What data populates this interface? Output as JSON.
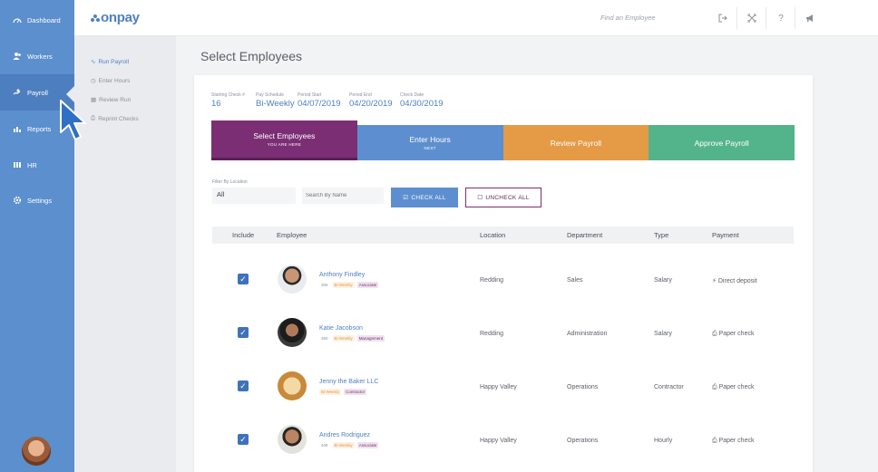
{
  "nav": {
    "items": [
      {
        "label": "Dashboard",
        "icon": "dashboard-icon"
      },
      {
        "label": "Workers",
        "icon": "workers-icon"
      },
      {
        "label": "Payroll",
        "icon": "payroll-icon"
      },
      {
        "label": "Reports",
        "icon": "reports-icon"
      },
      {
        "label": "HR",
        "icon": "hr-icon"
      },
      {
        "label": "Settings",
        "icon": "settings-icon"
      }
    ],
    "active": "Payroll"
  },
  "subnav": {
    "items": [
      {
        "label": "Run Payroll",
        "icon": "run-payroll-icon"
      },
      {
        "label": "Enter Hours",
        "icon": "clock-icon"
      },
      {
        "label": "Review Run",
        "icon": "review-icon"
      },
      {
        "label": "Reprint Checks",
        "icon": "printer-icon"
      }
    ]
  },
  "topbar": {
    "logo": "onpay",
    "search_placeholder": "Find an Employee"
  },
  "page": {
    "title": "Select Employees"
  },
  "meta": [
    {
      "label": "Starting Check #",
      "value": "16"
    },
    {
      "label": "Pay Schedule",
      "value": "Bi-Weekly"
    },
    {
      "label": "Period Start",
      "value": "04/07/2019"
    },
    {
      "label": "Period End",
      "value": "04/20/2019"
    },
    {
      "label": "Check Date",
      "value": "04/30/2019"
    }
  ],
  "steps": [
    {
      "title": "Select Employees",
      "sub": "YOU ARE HERE",
      "color": "#7b2e74"
    },
    {
      "title": "Enter Hours",
      "sub": "NEXT",
      "color": "#5d8fd0"
    },
    {
      "title": "Review Payroll",
      "sub": "",
      "color": "#e59a45"
    },
    {
      "title": "Approve Payroll",
      "sub": "",
      "color": "#53b48c"
    }
  ],
  "filters": {
    "location_label": "Filter By Location",
    "location_value": "All",
    "search_placeholder": "Search By Name",
    "check_all": "CHECK ALL",
    "uncheck_all": "UNCHECK ALL"
  },
  "table": {
    "headers": [
      "Include",
      "Employee",
      "Location",
      "Department",
      "Type",
      "Payment"
    ],
    "rows": [
      {
        "name": "Anthony Findley",
        "num": "306",
        "freq": "Bi-Weekly",
        "role": "Associate",
        "location": "Redding",
        "department": "Sales",
        "type": "Salary",
        "payment": "Direct deposit",
        "payment_icon": "bolt-icon",
        "checked": true
      },
      {
        "name": "Katie Jacobson",
        "num": "350",
        "freq": "Bi-Weekly",
        "role": "Management",
        "location": "Redding",
        "department": "Administration",
        "type": "Salary",
        "payment": "Paper check",
        "payment_icon": "printer-icon",
        "checked": true
      },
      {
        "name": "Jenny the Baker LLC",
        "num": "",
        "freq": "Bi-Weekly",
        "role": "Contractor",
        "location": "Happy Valley",
        "department": "Operations",
        "type": "Contractor",
        "payment": "Paper check",
        "payment_icon": "printer-icon",
        "checked": true
      },
      {
        "name": "Andres Rodriguez",
        "num": "405",
        "freq": "Bi-Weekly",
        "role": "Associate",
        "location": "Happy Valley",
        "department": "Operations",
        "type": "Hourly",
        "payment": "Paper check",
        "payment_icon": "printer-icon",
        "checked": true
      }
    ]
  }
}
